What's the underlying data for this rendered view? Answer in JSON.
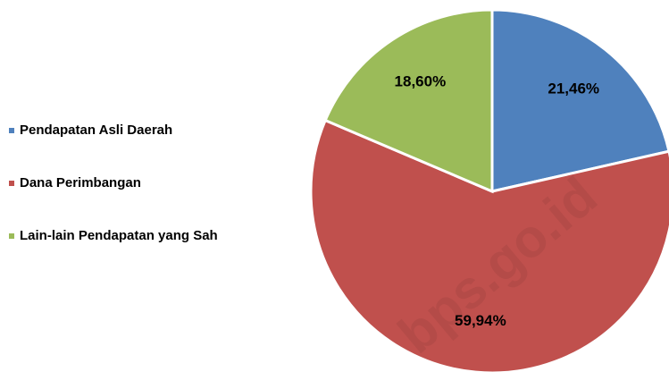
{
  "chart_data": {
    "type": "pie",
    "categories": [
      "Pendapatan Asli Daerah",
      "Dana Perimbangan",
      "Lain-lain Pendapatan yang Sah"
    ],
    "values": [
      21.46,
      59.94,
      18.6
    ],
    "value_labels": [
      "21,46%",
      "59,94%",
      "18,60%"
    ],
    "colors": [
      "#4f81bd",
      "#c0504d",
      "#9bbb59"
    ],
    "legend": "left",
    "watermark": "bps.go.id"
  }
}
